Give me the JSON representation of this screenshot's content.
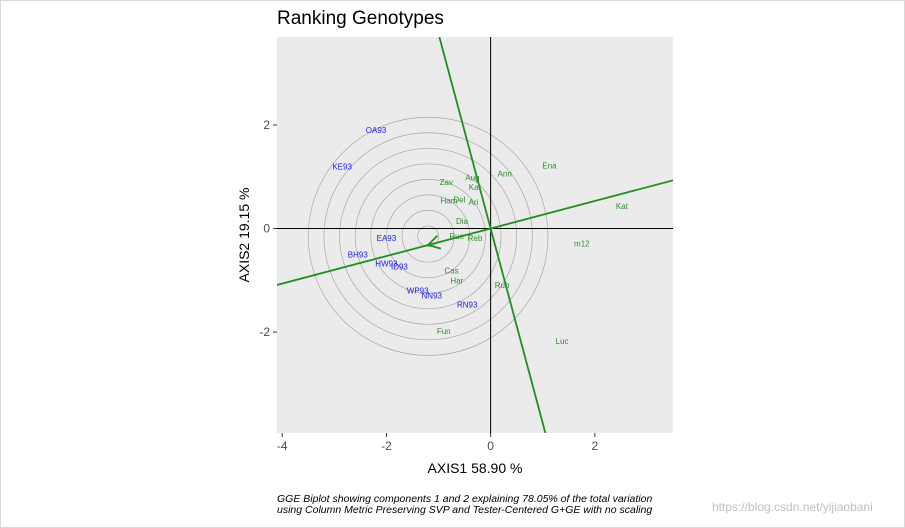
{
  "chart_data": {
    "type": "scatter",
    "title": "Ranking Genotypes",
    "xlabel": "AXIS1 58.90 %",
    "ylabel": "AXIS2 19.15 %",
    "xlim": [
      -4.1,
      3.5
    ],
    "ylim": [
      -3.95,
      3.7
    ],
    "x_ticks": [
      -4,
      -2,
      0,
      2
    ],
    "y_ticks": [
      -2,
      0,
      2
    ],
    "grid": false,
    "colors": {
      "panel": "#ebebeb",
      "environment": "#1a1aee",
      "genotype": "#2e8b2e",
      "axis_line": "#1f8f1f",
      "circle": "#a8a8a8",
      "origin_lines": "#000000"
    },
    "average_environment": {
      "x": -1.2,
      "y": -0.15
    },
    "circle_radii": [
      0.2,
      0.5,
      0.8,
      1.1,
      1.4,
      1.7,
      2.0,
      2.3
    ],
    "axis_line": {
      "slope": 0.266
    },
    "perpendicular_line": {
      "slope": -3.76
    },
    "environments": [
      {
        "label": "OA93",
        "x": -2.2,
        "y": 1.9
      },
      {
        "label": "KE93",
        "x": -2.85,
        "y": 1.2
      },
      {
        "label": "EA93",
        "x": -2.0,
        "y": -0.18
      },
      {
        "label": "BH93",
        "x": -2.55,
        "y": -0.5
      },
      {
        "label": "HW93",
        "x": -2.0,
        "y": -0.68
      },
      {
        "label": "ID93",
        "x": -1.75,
        "y": -0.73
      },
      {
        "label": "WP93",
        "x": -1.4,
        "y": -1.2
      },
      {
        "label": "NN93",
        "x": -1.13,
        "y": -1.29
      },
      {
        "label": "RN93",
        "x": -0.45,
        "y": -1.47
      }
    ],
    "genotypes": [
      {
        "label": "Ena",
        "x": 1.13,
        "y": 1.22
      },
      {
        "label": "Ann",
        "x": 0.27,
        "y": 1.06
      },
      {
        "label": "Aug",
        "x": -0.35,
        "y": 0.99
      },
      {
        "label": "Kar",
        "x": -0.3,
        "y": 0.8
      },
      {
        "label": "Zav",
        "x": -0.85,
        "y": 0.9
      },
      {
        "label": "Ham",
        "x": -0.8,
        "y": 0.54
      },
      {
        "label": "Del",
        "x": -0.6,
        "y": 0.56
      },
      {
        "label": "Ari",
        "x": -0.33,
        "y": 0.51
      },
      {
        "label": "Kat",
        "x": 2.52,
        "y": 0.44
      },
      {
        "label": "Dia",
        "x": -0.55,
        "y": 0.15
      },
      {
        "label": "Rue",
        "x": -0.65,
        "y": -0.14
      },
      {
        "label": "Reb",
        "x": -0.3,
        "y": -0.18
      },
      {
        "label": "m12",
        "x": 1.75,
        "y": -0.29
      },
      {
        "label": "Cas",
        "x": -0.75,
        "y": -0.81
      },
      {
        "label": "Har",
        "x": -0.65,
        "y": -1.0
      },
      {
        "label": "Rub",
        "x": 0.22,
        "y": -1.09
      },
      {
        "label": "Fun",
        "x": -0.9,
        "y": -1.98
      },
      {
        "label": "Luc",
        "x": 1.37,
        "y": -2.17
      }
    ]
  },
  "caption": {
    "line1": "GGE Biplot showing components 1 and 2 explaining 78.05% of the total variation",
    "line2": "using Column Metric Preserving SVP and Tester-Centered G+GE with no scaling"
  },
  "watermark": "https://blog.csdn.net/yijiaobani"
}
